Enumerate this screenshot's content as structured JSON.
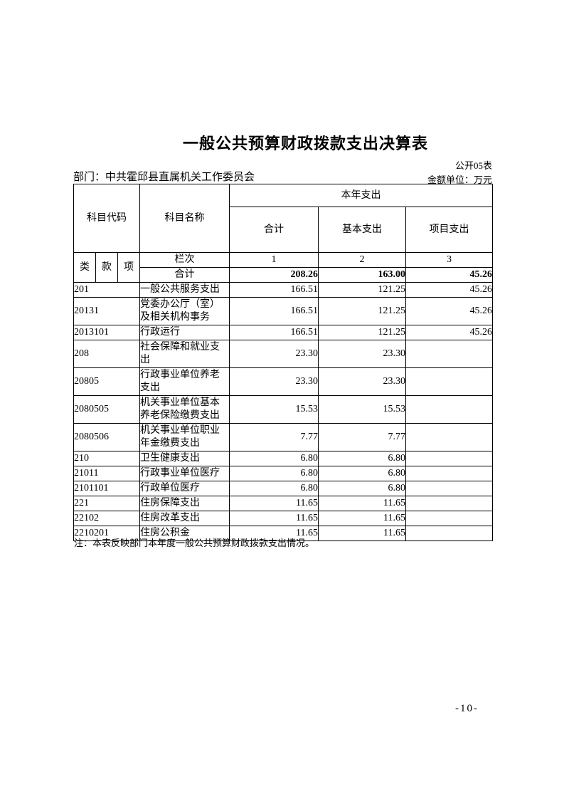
{
  "page": {
    "title": "一般公共预算财政拨款支出决算表",
    "form_label": "公开05表",
    "department": "部门：中共霍邱县直属机关工作委员会",
    "unit": "金额单位：万元",
    "note": "注：本表反映部门本年度一般公共预算财政拨款支出情况。",
    "page_number": "-10-"
  },
  "table": {
    "headers": {
      "subject_code": "科目代码",
      "subject_name": "科目名称",
      "current_year_expense": "本年支出",
      "total": "合计",
      "basic_expense": "基本支出",
      "project_expense": "项目支出",
      "cls": "类",
      "sec": "款",
      "itm": "项",
      "column_row_label": "栏次",
      "col_1": "1",
      "col_2": "2",
      "col_3": "3"
    },
    "total_row": {
      "label": "合计",
      "total": "208.26",
      "basic": "163.00",
      "project": "45.26"
    },
    "rows": [
      {
        "code": "201",
        "name": "一般公共服务支出",
        "total": "166.51",
        "basic": "121.25",
        "project": "45.26"
      },
      {
        "code": "20131",
        "name": "党委办公厅（室）及相关机构事务",
        "total": "166.51",
        "basic": "121.25",
        "project": "45.26"
      },
      {
        "code": "2013101",
        "name": "行政运行",
        "total": "166.51",
        "basic": "121.25",
        "project": "45.26"
      },
      {
        "code": "208",
        "name": "社会保障和就业支出",
        "total": "23.30",
        "basic": "23.30",
        "project": ""
      },
      {
        "code": "20805",
        "name": "行政事业单位养老支出",
        "total": "23.30",
        "basic": "23.30",
        "project": ""
      },
      {
        "code": "2080505",
        "name": "机关事业单位基本养老保险缴费支出",
        "total": "15.53",
        "basic": "15.53",
        "project": ""
      },
      {
        "code": "2080506",
        "name": "机关事业单位职业年金缴费支出",
        "total": "7.77",
        "basic": "7.77",
        "project": ""
      },
      {
        "code": "210",
        "name": "卫生健康支出",
        "total": "6.80",
        "basic": "6.80",
        "project": ""
      },
      {
        "code": "21011",
        "name": "行政事业单位医疗",
        "total": "6.80",
        "basic": "6.80",
        "project": ""
      },
      {
        "code": "2101101",
        "name": "行政单位医疗",
        "total": "6.80",
        "basic": "6.80",
        "project": ""
      },
      {
        "code": "221",
        "name": "住房保障支出",
        "total": "11.65",
        "basic": "11.65",
        "project": ""
      },
      {
        "code": "22102",
        "name": "住房改革支出",
        "total": "11.65",
        "basic": "11.65",
        "project": ""
      },
      {
        "code": "2210201",
        "name": "住房公积金",
        "total": "11.65",
        "basic": "11.65",
        "project": ""
      }
    ]
  }
}
